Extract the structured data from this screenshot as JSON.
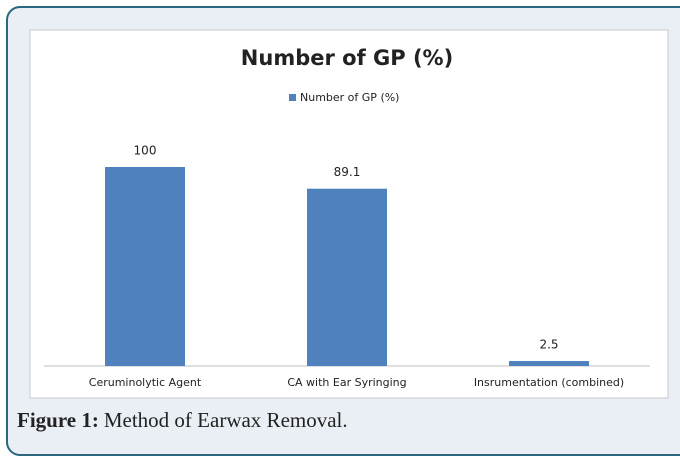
{
  "chart_data": {
    "type": "bar",
    "title": "Number of GP (%)",
    "categories": [
      "Ceruminolytic Agent",
      "CA with Ear Syringing",
      "Insrumentation (combined)"
    ],
    "series": [
      {
        "name": "Number of GP (%)",
        "color": "#4f81bd",
        "values": [
          100,
          89.1,
          2.5
        ]
      }
    ]
  },
  "caption": {
    "label": "Figure 1:",
    "text": "Method of Earwax Removal."
  }
}
